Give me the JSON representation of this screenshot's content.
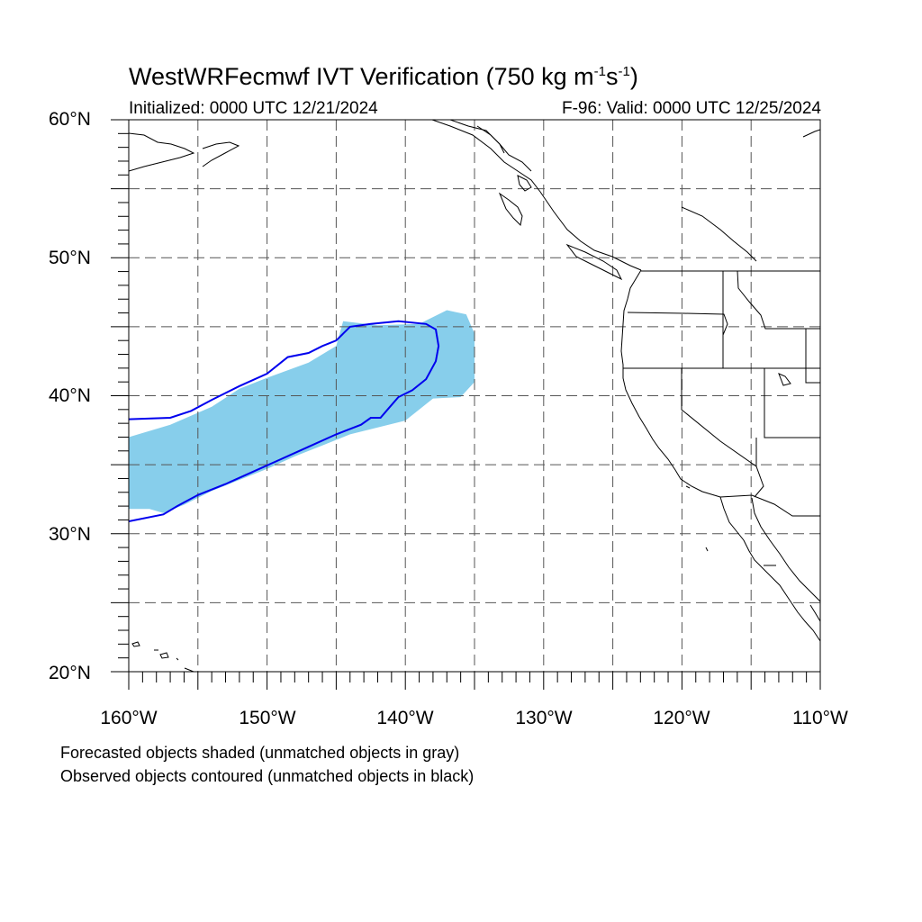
{
  "title": {
    "main": "WestWRFecmwf IVT Verification (750 kg m",
    "exp1": "-1",
    "mid": "s",
    "exp2": "-1",
    "end": ")"
  },
  "subtitle": {
    "initialized": "Initialized: 0000 UTC 12/21/2024",
    "valid": "F-96: Valid: 0000 UTC 12/25/2024"
  },
  "axes": {
    "lat_labels": [
      "60°N",
      "50°N",
      "40°N",
      "30°N",
      "20°N"
    ],
    "lon_labels": [
      "160°W",
      "150°W",
      "140°W",
      "130°W",
      "120°W",
      "110°W"
    ],
    "lon_range": [
      -160,
      -110
    ],
    "lat_range": [
      20,
      60
    ],
    "grid": "dashed every 5 degrees"
  },
  "legend": {
    "forecast_note": "Forecasted objects shaded (unmatched objects in gray)",
    "observed_note": "Observed objects contoured (unmatched objects in black)"
  },
  "colors": {
    "forecast_fill": "#87ceeb",
    "observed_contour": "#0000ee",
    "coastline": "#000000",
    "grid": "#555555"
  },
  "map_data": {
    "forecast_object": [
      [
        -160,
        37
      ],
      [
        -157,
        37.9
      ],
      [
        -154,
        39.2
      ],
      [
        -152,
        40.5
      ],
      [
        -150,
        41.3
      ],
      [
        -147,
        42.4
      ],
      [
        -145,
        43.6
      ],
      [
        -144.5,
        45.4
      ],
      [
        -142,
        45.1
      ],
      [
        -139,
        45.2
      ],
      [
        -137,
        46.2
      ],
      [
        -135.6,
        45.9
      ],
      [
        -135,
        44.5
      ],
      [
        -135,
        41
      ],
      [
        -136,
        39.9
      ],
      [
        -138,
        39.8
      ],
      [
        -140,
        38.2
      ],
      [
        -142,
        37.7
      ],
      [
        -144,
        37.2
      ],
      [
        -146,
        36.4
      ],
      [
        -148,
        35.6
      ],
      [
        -150,
        34.7
      ],
      [
        -152,
        33.9
      ],
      [
        -154,
        33.1
      ],
      [
        -156,
        32.1
      ],
      [
        -157.5,
        31.5
      ],
      [
        -158.5,
        31.8
      ],
      [
        -160,
        31.8
      ]
    ],
    "observed_object": [
      [
        -160,
        38.3
      ],
      [
        -157,
        38.4
      ],
      [
        -155.5,
        38.9
      ],
      [
        -154,
        39.7
      ],
      [
        -152,
        40.7
      ],
      [
        -150,
        41.6
      ],
      [
        -148.5,
        42.8
      ],
      [
        -147,
        43.1
      ],
      [
        -146,
        43.6
      ],
      [
        -145,
        44.0
      ],
      [
        -144,
        45.0
      ],
      [
        -142.5,
        45.2
      ],
      [
        -140.5,
        45.4
      ],
      [
        -138.5,
        45.2
      ],
      [
        -137.8,
        44.8
      ],
      [
        -137.6,
        43.6
      ],
      [
        -137.8,
        42.5
      ],
      [
        -138.5,
        41.2
      ],
      [
        -139.5,
        40.4
      ],
      [
        -140.5,
        39.9
      ],
      [
        -141.2,
        39.1
      ],
      [
        -141.8,
        38.4
      ],
      [
        -142.5,
        38.4
      ],
      [
        -143.2,
        37.9
      ],
      [
        -145,
        37.2
      ],
      [
        -147,
        36.3
      ],
      [
        -149,
        35.4
      ],
      [
        -151,
        34.5
      ],
      [
        -153,
        33.6
      ],
      [
        -155,
        32.8
      ],
      [
        -156.5,
        32.0
      ],
      [
        -157.5,
        31.4
      ],
      [
        -160,
        30.9
      ]
    ]
  }
}
